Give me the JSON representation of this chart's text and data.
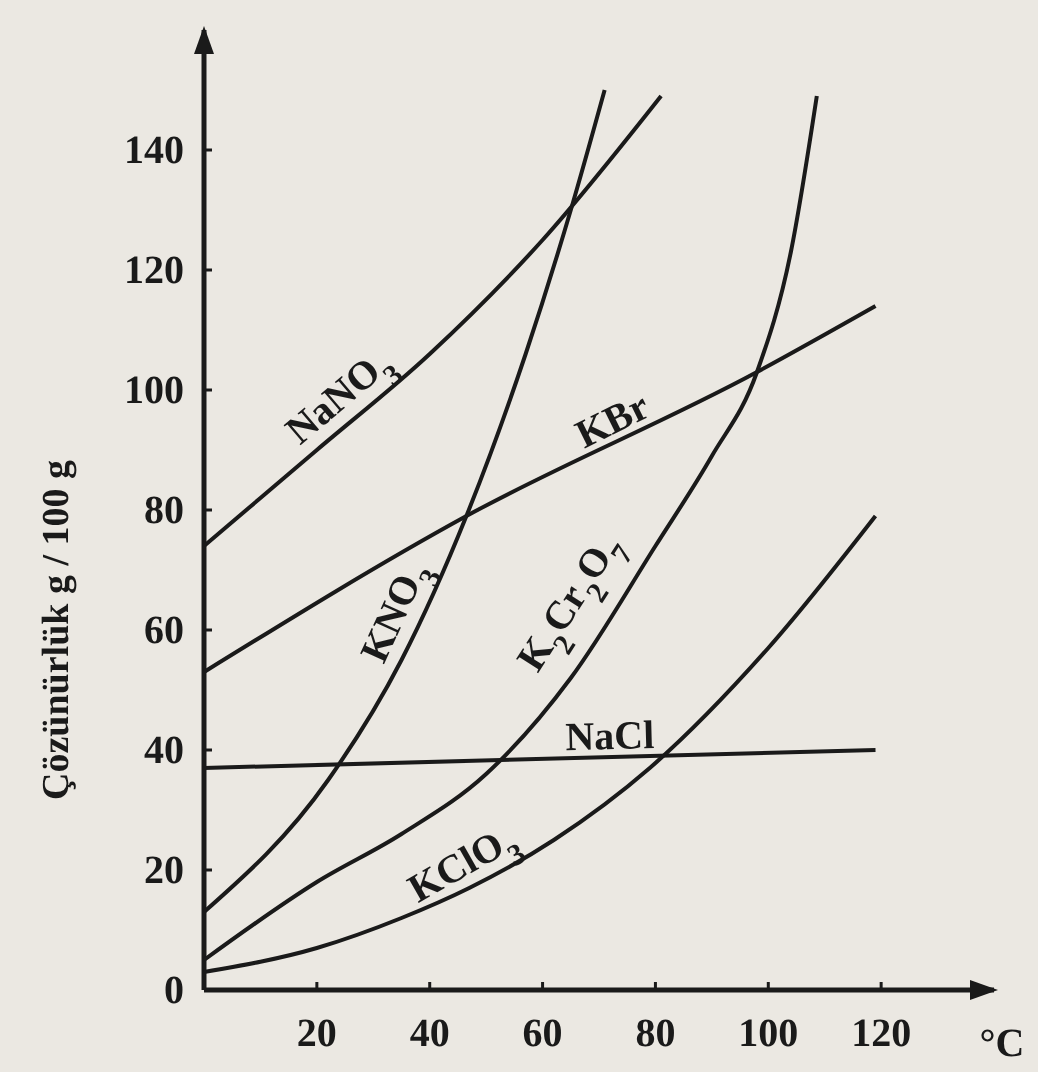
{
  "chart_data": {
    "type": "line",
    "xlabel": "°C",
    "ylabel": "Çözünürlük g / 100 g",
    "xlim": [
      0,
      140
    ],
    "ylim": [
      0,
      160
    ],
    "xticks": [
      20,
      40,
      60,
      80,
      100,
      120
    ],
    "yticks": [
      0,
      20,
      40,
      60,
      80,
      100,
      120,
      140
    ],
    "grid": false,
    "marker": "none",
    "line_style": "solid",
    "series": [
      {
        "name": "NaNO$_{3}$",
        "color": "#1a1a1a",
        "x": [
          0,
          20,
          40,
          60,
          81
        ],
        "values": [
          74,
          90,
          106,
          125,
          149
        ]
      },
      {
        "name": "KNO$_{3}$",
        "color": "#1a1a1a",
        "x": [
          0,
          22,
          35,
          46.5,
          57,
          65,
          71
        ],
        "values": [
          13,
          35,
          55,
          79,
          106,
          130,
          150
        ]
      },
      {
        "name": "KBr",
        "color": "#1a1a1a",
        "x": [
          0,
          46.5,
          98,
          119
        ],
        "values": [
          53,
          79,
          103,
          114
        ]
      },
      {
        "name": "K$_{2}$Cr$_{2}$O$_{7}$",
        "color": "#1a1a1a",
        "x": [
          0,
          20,
          35,
          50,
          65,
          80,
          90,
          98,
          104,
          108.6
        ],
        "values": [
          5,
          18,
          26,
          36,
          52,
          74,
          89,
          103,
          123,
          149
        ]
      },
      {
        "name": "NaCl",
        "color": "#1a1a1a",
        "x": [
          0,
          119
        ],
        "values": [
          37,
          40
        ]
      },
      {
        "name": "KClO$_{3}$",
        "color": "#1a1a1a",
        "x": [
          0,
          20,
          35,
          47,
          62,
          79,
          100,
          119
        ],
        "values": [
          3,
          7,
          12,
          17,
          25,
          37,
          57,
          79
        ]
      }
    ]
  }
}
